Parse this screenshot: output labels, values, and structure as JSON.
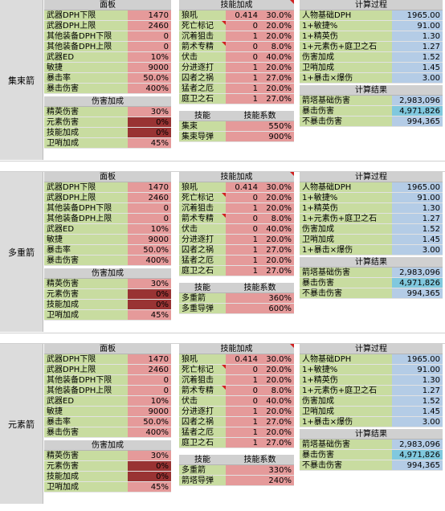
{
  "sections": [
    {
      "name": "集束箭",
      "panel": {
        "title": "面板",
        "rows": [
          {
            "label": "武器DPH下限",
            "value": "1470"
          },
          {
            "label": "武器DPH上限",
            "value": "2460"
          },
          {
            "label": "其他装备DPH下限",
            "value": "0"
          },
          {
            "label": "其他装备DPH上限",
            "value": "0"
          },
          {
            "label": "武器ED",
            "value": "10%"
          },
          {
            "label": "敏捷",
            "value": "9000"
          },
          {
            "label": "暴击率",
            "value": "50.0%"
          },
          {
            "label": "暴击伤害",
            "value": "400%"
          }
        ]
      },
      "damage_bonus": {
        "title": "伤害加成",
        "rows": [
          {
            "label": "精英伤害",
            "value": "30%"
          },
          {
            "label": "元素伤害",
            "value": "0%"
          },
          {
            "label": "技能加成",
            "value": "0%"
          },
          {
            "label": "卫哨加成",
            "value": "45%"
          }
        ]
      },
      "skill_bonus": {
        "title": "技能加成",
        "rows": [
          {
            "label": "狼吼",
            "count": "0.414",
            "value": "30.0%"
          },
          {
            "label": "死亡标记",
            "count": "0",
            "value": "20.0%"
          },
          {
            "label": "沉着狙击",
            "count": "1",
            "value": "20.0%"
          },
          {
            "label": "箭术专精",
            "count": "0",
            "value": "8.0%"
          },
          {
            "label": "伏击",
            "count": "0",
            "value": "40.0%"
          },
          {
            "label": "分进逐打",
            "count": "1",
            "value": "20.0%"
          },
          {
            "label": "囚者之祸",
            "count": "1",
            "value": "27.0%"
          },
          {
            "label": "猛者之厄",
            "count": "1",
            "value": "20.0%"
          },
          {
            "label": "庭卫之石",
            "count": "1",
            "value": "27.0%"
          }
        ]
      },
      "skill_coef": {
        "header_skill": "技能",
        "header_coef": "技能系数",
        "rows": [
          {
            "label": "集束",
            "value": "550%"
          },
          {
            "label": "集束导弹",
            "value": "900%"
          }
        ]
      },
      "calc": {
        "title": "计算过程",
        "rows": [
          {
            "label": "人物基础DPH",
            "value": "1965.00"
          },
          {
            "label": "1+敏捷%",
            "value": "91.00"
          },
          {
            "label": "1+精英伤",
            "value": "1.30"
          },
          {
            "label": "1+元素伤+庭卫之石",
            "value": "1.27"
          },
          {
            "label": "伤害加成",
            "value": "1.52"
          },
          {
            "label": "卫哨加成",
            "value": "1.45"
          },
          {
            "label": "1+暴击×爆伤",
            "value": "3.00"
          }
        ]
      },
      "result": {
        "title": "计算结果",
        "rows": [
          {
            "label": "箭塔基础伤害",
            "value": "2,983,096"
          },
          {
            "label": "暴击伤害",
            "value": "4,971,826"
          },
          {
            "label": "不暴击伤害",
            "value": "994,365"
          }
        ]
      }
    },
    {
      "name": "多重箭",
      "panel": {
        "title": "面板",
        "rows": [
          {
            "label": "武器DPH下限",
            "value": "1470"
          },
          {
            "label": "武器DPH上限",
            "value": "2460"
          },
          {
            "label": "其他装备DPH下限",
            "value": "0"
          },
          {
            "label": "其他装备DPH上限",
            "value": "0"
          },
          {
            "label": "武器ED",
            "value": "10%"
          },
          {
            "label": "敏捷",
            "value": "9000"
          },
          {
            "label": "暴击率",
            "value": "50.0%"
          },
          {
            "label": "暴击伤害",
            "value": "400%"
          }
        ]
      },
      "damage_bonus": {
        "title": "伤害加成",
        "rows": [
          {
            "label": "精英伤害",
            "value": "30%"
          },
          {
            "label": "元素伤害",
            "value": "0%"
          },
          {
            "label": "技能加成",
            "value": "0%"
          },
          {
            "label": "卫哨加成",
            "value": "45%"
          }
        ]
      },
      "skill_bonus": {
        "title": "技能加成",
        "rows": [
          {
            "label": "狼吼",
            "count": "0.414",
            "value": "30.0%"
          },
          {
            "label": "死亡标记",
            "count": "0",
            "value": "20.0%"
          },
          {
            "label": "沉着狙击",
            "count": "1",
            "value": "20.0%"
          },
          {
            "label": "箭术专精",
            "count": "0",
            "value": "8.0%"
          },
          {
            "label": "伏击",
            "count": "0",
            "value": "40.0%"
          },
          {
            "label": "分进逐打",
            "count": "1",
            "value": "20.0%"
          },
          {
            "label": "囚者之祸",
            "count": "1",
            "value": "27.0%"
          },
          {
            "label": "猛者之厄",
            "count": "1",
            "value": "20.0%"
          },
          {
            "label": "庭卫之石",
            "count": "1",
            "value": "27.0%"
          }
        ]
      },
      "skill_coef": {
        "header_skill": "技能",
        "header_coef": "技能系数",
        "rows": [
          {
            "label": "多重箭",
            "value": "360%"
          },
          {
            "label": "多重导弹",
            "value": "600%"
          }
        ]
      },
      "calc": {
        "title": "计算过程",
        "rows": [
          {
            "label": "人物基础DPH",
            "value": "1965.00"
          },
          {
            "label": "1+敏捷%",
            "value": "91.00"
          },
          {
            "label": "1+精英伤",
            "value": "1.30"
          },
          {
            "label": "1+元素伤+庭卫之石",
            "value": "1.27"
          },
          {
            "label": "伤害加成",
            "value": "1.52"
          },
          {
            "label": "卫哨加成",
            "value": "1.45"
          },
          {
            "label": "1+暴击×爆伤",
            "value": "3.00"
          }
        ]
      },
      "result": {
        "title": "计算结果",
        "rows": [
          {
            "label": "箭塔基础伤害",
            "value": "2,983,096"
          },
          {
            "label": "暴击伤害",
            "value": "4,971,826"
          },
          {
            "label": "不暴击伤害",
            "value": "994,365"
          }
        ]
      }
    },
    {
      "name": "元素箭",
      "panel": {
        "title": "面板",
        "rows": [
          {
            "label": "武器DPH下限",
            "value": "1470"
          },
          {
            "label": "武器DPH上限",
            "value": "2460"
          },
          {
            "label": "其他装备DPH下限",
            "value": "0"
          },
          {
            "label": "其他装备DPH上限",
            "value": "0"
          },
          {
            "label": "武器ED",
            "value": "10%"
          },
          {
            "label": "敏捷",
            "value": "9000"
          },
          {
            "label": "暴击率",
            "value": "50.0%"
          },
          {
            "label": "暴击伤害",
            "value": "400%"
          }
        ]
      },
      "damage_bonus": {
        "title": "伤害加成",
        "rows": [
          {
            "label": "精英伤害",
            "value": "30%"
          },
          {
            "label": "元素伤害",
            "value": "0%"
          },
          {
            "label": "技能加成",
            "value": "0%"
          },
          {
            "label": "卫哨加成",
            "value": "45%"
          }
        ]
      },
      "skill_bonus": {
        "title": "技能加成",
        "rows": [
          {
            "label": "狼吼",
            "count": "0.414",
            "value": "30.0%"
          },
          {
            "label": "死亡标记",
            "count": "0",
            "value": "20.0%"
          },
          {
            "label": "沉着狙击",
            "count": "1",
            "value": "20.0%"
          },
          {
            "label": "箭术专精",
            "count": "0",
            "value": "8.0%"
          },
          {
            "label": "伏击",
            "count": "0",
            "value": "40.0%"
          },
          {
            "label": "分进逐打",
            "count": "1",
            "value": "20.0%"
          },
          {
            "label": "囚者之祸",
            "count": "1",
            "value": "27.0%"
          },
          {
            "label": "猛者之厄",
            "count": "1",
            "value": "20.0%"
          },
          {
            "label": "庭卫之石",
            "count": "1",
            "value": "27.0%"
          }
        ]
      },
      "skill_coef": {
        "header_skill": "技能",
        "header_coef": "技能系数",
        "rows": [
          {
            "label": "多重箭",
            "value": "330%"
          },
          {
            "label": "箭塔导弹",
            "value": "240%"
          }
        ]
      },
      "calc": {
        "title": "计算过程",
        "rows": [
          {
            "label": "人物基础DPH",
            "value": "1965.00"
          },
          {
            "label": "1+敏捷%",
            "value": "91.00"
          },
          {
            "label": "1+精英伤",
            "value": "1.30"
          },
          {
            "label": "1+元素伤+庭卫之石",
            "value": "1.27"
          },
          {
            "label": "伤害加成",
            "value": "1.52"
          },
          {
            "label": "卫哨加成",
            "value": "1.45"
          },
          {
            "label": "1+暴击×爆伤",
            "value": "3.00"
          }
        ]
      },
      "result": {
        "title": "计算结果",
        "rows": [
          {
            "label": "箭塔基础伤害",
            "value": "2,983,096"
          },
          {
            "label": "暴击伤害",
            "value": "4,971,826"
          },
          {
            "label": "不暴击伤害",
            "value": "994,365"
          }
        ]
      }
    }
  ]
}
